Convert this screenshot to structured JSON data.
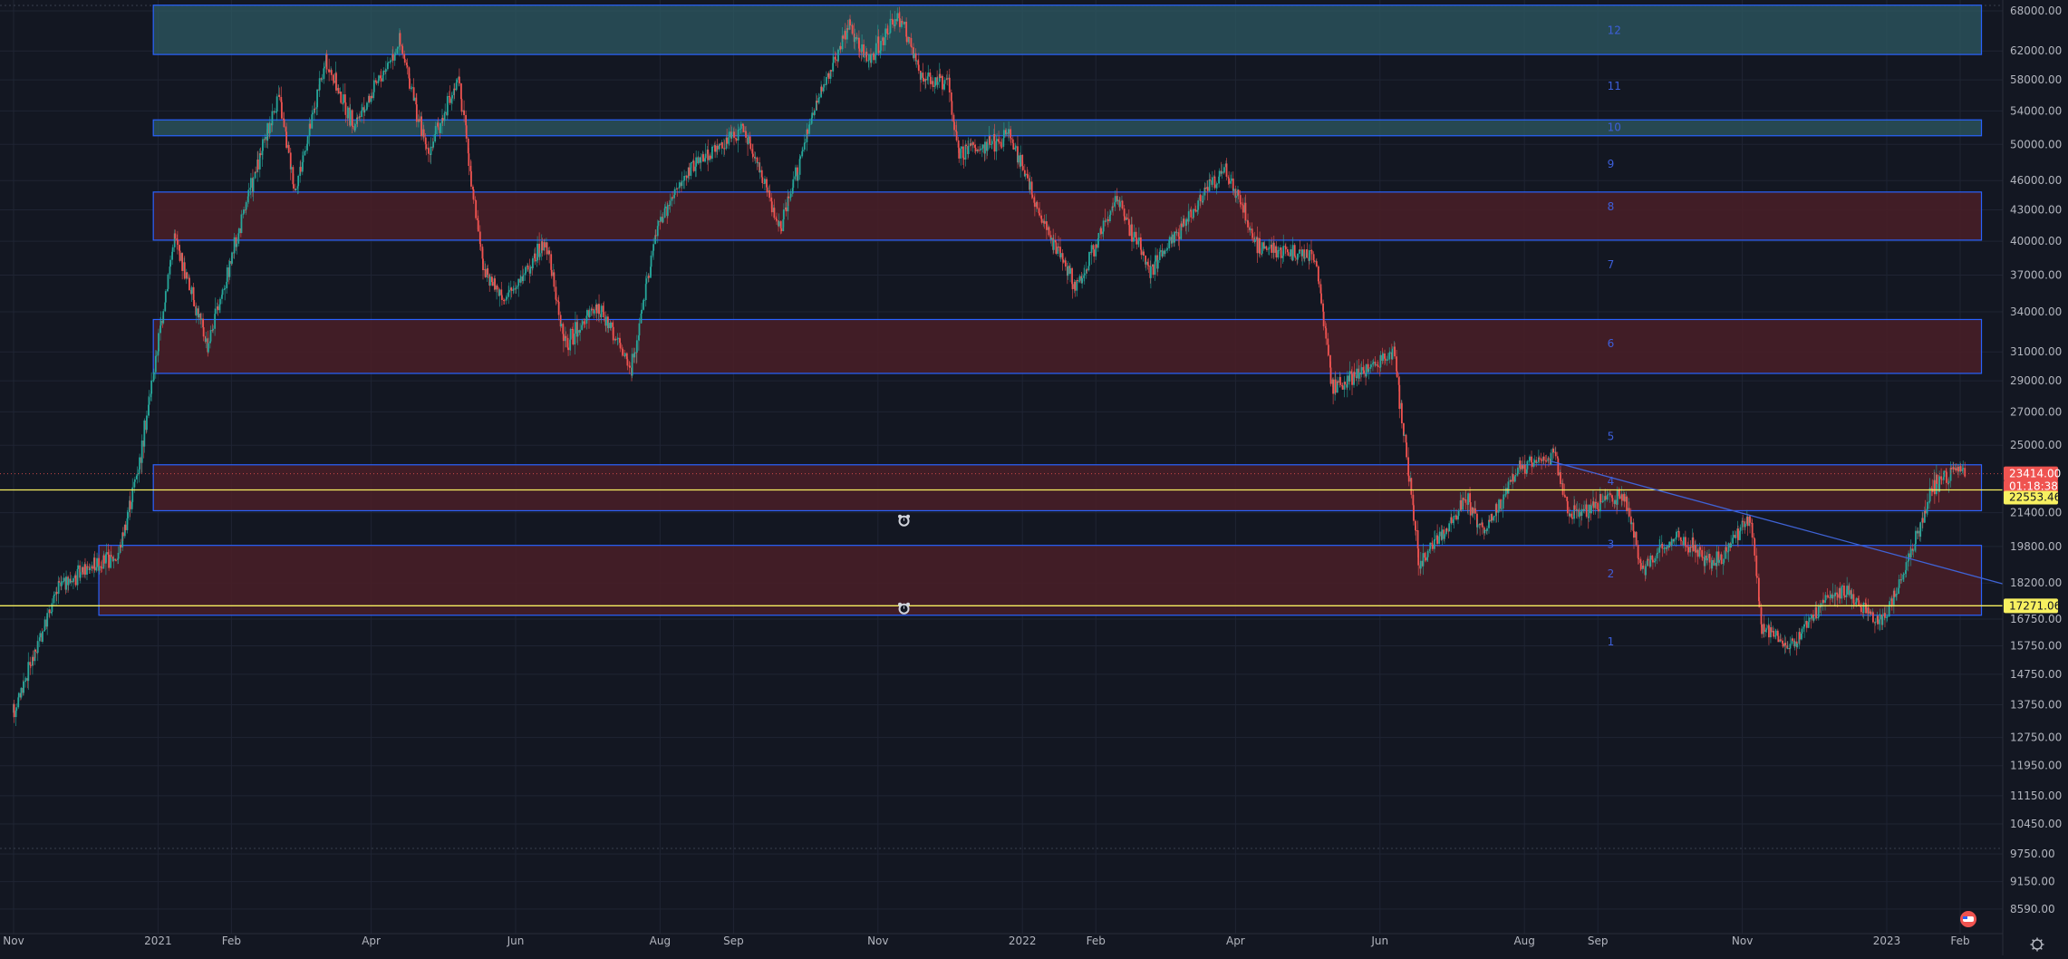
{
  "colors": {
    "background": "#131722",
    "grid": "#1f2433",
    "axis_text": "#b2b5be",
    "up": "#26a69a",
    "down": "#ef5350",
    "zone_teal_fill": "#2e5a63",
    "zone_red_fill": "#4a1f27",
    "zone_border": "#2962ff",
    "hline": "#f7f060",
    "trendline": "#3f63d6",
    "level_number": "#3d5fdb",
    "price_tag_red": "#ef5350",
    "price_tag_yellow": "#f7f060"
  },
  "chart_data": {
    "type": "candlestick",
    "y_scale": "log",
    "ylim": [
      8300,
      69000
    ],
    "xlim": [
      "2020-11-01",
      "2023-02-15"
    ],
    "grid": true,
    "y_ticks": [
      "68000.00",
      "62000.00",
      "58000.00",
      "54000.00",
      "50000.00",
      "46000.00",
      "43000.00",
      "40000.00",
      "37000.00",
      "34000.00",
      "31000.00",
      "29000.00",
      "27000.00",
      "25000.00",
      "21400.00",
      "19800.00",
      "18200.00",
      "16750.00",
      "15750.00",
      "14750.00",
      "13750.00",
      "12750.00",
      "11950.00",
      "11150.00",
      "10450.00",
      "9750.00",
      "9150.00",
      "8590.00"
    ],
    "x_ticks": [
      {
        "date": "2020-11-01",
        "label": "Nov"
      },
      {
        "date": "2021-01-01",
        "label": "2021"
      },
      {
        "date": "2021-02-01",
        "label": "Feb"
      },
      {
        "date": "2021-04-01",
        "label": "Apr"
      },
      {
        "date": "2021-06-01",
        "label": "Jun"
      },
      {
        "date": "2021-08-01",
        "label": "Aug"
      },
      {
        "date": "2021-09-01",
        "label": "Sep"
      },
      {
        "date": "2021-11-01",
        "label": "Nov"
      },
      {
        "date": "2022-01-01",
        "label": "2022"
      },
      {
        "date": "2022-02-01",
        "label": "Feb"
      },
      {
        "date": "2022-04-01",
        "label": "Apr"
      },
      {
        "date": "2022-06-01",
        "label": "Jun"
      },
      {
        "date": "2022-08-01",
        "label": "Aug"
      },
      {
        "date": "2022-09-01",
        "label": "Sep"
      },
      {
        "date": "2022-11-01",
        "label": "Nov"
      },
      {
        "date": "2023-01-01",
        "label": "2023"
      },
      {
        "date": "2023-02-01",
        "label": "Feb"
      }
    ],
    "price_path": [
      [
        "2020-11-01",
        13500
      ],
      [
        "2020-11-20",
        18000
      ],
      [
        "2020-12-05",
        19000
      ],
      [
        "2020-12-15",
        19300
      ],
      [
        "2020-12-25",
        24500
      ],
      [
        "2021-01-08",
        40500
      ],
      [
        "2021-01-22",
        31500
      ],
      [
        "2021-02-08",
        44000
      ],
      [
        "2021-02-21",
        56000
      ],
      [
        "2021-02-28",
        45000
      ],
      [
        "2021-03-13",
        60500
      ],
      [
        "2021-03-25",
        52000
      ],
      [
        "2021-04-13",
        63500
      ],
      [
        "2021-04-25",
        49000
      ],
      [
        "2021-05-08",
        58000
      ],
      [
        "2021-05-19",
        37000
      ],
      [
        "2021-05-28",
        35000
      ],
      [
        "2021-06-14",
        40000
      ],
      [
        "2021-06-22",
        31500
      ],
      [
        "2021-07-06",
        34500
      ],
      [
        "2021-07-20",
        29800
      ],
      [
        "2021-07-31",
        41500
      ],
      [
        "2021-08-14",
        47500
      ],
      [
        "2021-09-06",
        52000
      ],
      [
        "2021-09-21",
        41000
      ],
      [
        "2021-10-06",
        55000
      ],
      [
        "2021-10-20",
        66000
      ],
      [
        "2021-10-28",
        60500
      ],
      [
        "2021-11-10",
        67500
      ],
      [
        "2021-11-20",
        58000
      ],
      [
        "2021-12-01",
        57500
      ],
      [
        "2021-12-05",
        49000
      ],
      [
        "2021-12-27",
        51000
      ],
      [
        "2022-01-10",
        41500
      ],
      [
        "2022-01-24",
        36000
      ],
      [
        "2022-02-10",
        44000
      ],
      [
        "2022-02-24",
        37500
      ],
      [
        "2022-03-28",
        47500
      ],
      [
        "2022-04-11",
        39500
      ],
      [
        "2022-05-05",
        38500
      ],
      [
        "2022-05-12",
        28500
      ],
      [
        "2022-06-07",
        31000
      ],
      [
        "2022-06-18",
        19000
      ],
      [
        "2022-07-08",
        22000
      ],
      [
        "2022-07-15",
        20500
      ],
      [
        "2022-07-30",
        23800
      ],
      [
        "2022-08-14",
        24500
      ],
      [
        "2022-08-20",
        21300
      ],
      [
        "2022-09-12",
        22400
      ],
      [
        "2022-09-20",
        18800
      ],
      [
        "2022-10-05",
        20300
      ],
      [
        "2022-10-20",
        19000
      ],
      [
        "2022-11-05",
        21200
      ],
      [
        "2022-11-09",
        16500
      ],
      [
        "2022-11-21",
        15700
      ],
      [
        "2022-12-05",
        17300
      ],
      [
        "2022-12-14",
        17900
      ],
      [
        "2022-12-30",
        16500
      ],
      [
        "2023-01-13",
        19900
      ],
      [
        "2023-01-21",
        22800
      ],
      [
        "2023-01-30",
        23600
      ],
      [
        "2023-02-03",
        23414
      ]
    ],
    "zones": [
      {
        "style": "teal",
        "from": "2020-12-30",
        "to": "2023-02-10",
        "low": 61500,
        "high": 68900
      },
      {
        "style": "teal",
        "from": "2020-12-30",
        "to": "2023-02-10",
        "low": 51000,
        "high": 52900
      },
      {
        "style": "red",
        "from": "2020-12-30",
        "to": "2023-02-10",
        "low": 40100,
        "high": 44800
      },
      {
        "style": "red",
        "from": "2020-12-30",
        "to": "2023-02-10",
        "low": 29500,
        "high": 33400
      },
      {
        "style": "red",
        "from": "2020-12-30",
        "to": "2023-02-10",
        "low": 21500,
        "high": 23900
      },
      {
        "style": "red",
        "from": "2020-12-07",
        "to": "2023-02-10",
        "low": 16900,
        "high": 19850
      }
    ],
    "level_numbers": [
      {
        "label": "12",
        "price": 65000
      },
      {
        "label": "11",
        "price": 57200
      },
      {
        "label": "10",
        "price": 52000
      },
      {
        "label": "9",
        "price": 47800
      },
      {
        "label": "8",
        "price": 43300
      },
      {
        "label": "7",
        "price": 37900
      },
      {
        "label": "6",
        "price": 31600
      },
      {
        "label": "5",
        "price": 25500
      },
      {
        "label": "4",
        "price": 23000
      },
      {
        "label": "3",
        "price": 19900
      },
      {
        "label": "2",
        "price": 18600
      },
      {
        "label": "1",
        "price": 15900
      }
    ],
    "level_numbers_date": "2022-09-05",
    "horizontal_lines": [
      22553.46,
      17271.06
    ],
    "trendline": [
      [
        "2022-08-12",
        24100
      ],
      [
        "2023-02-14",
        18300
      ]
    ],
    "alerts": [
      {
        "date": "2021-11-12",
        "price": 21000
      },
      {
        "date": "2021-11-12",
        "price": 17150
      }
    ]
  },
  "price_scale": {
    "last_price": "23414.00",
    "countdown": "01:18:38",
    "line_label_1": "22553.46",
    "line_label_2": "17271.06"
  },
  "settings_icon": "gear-icon",
  "flag_icon": "us-flag-icon"
}
